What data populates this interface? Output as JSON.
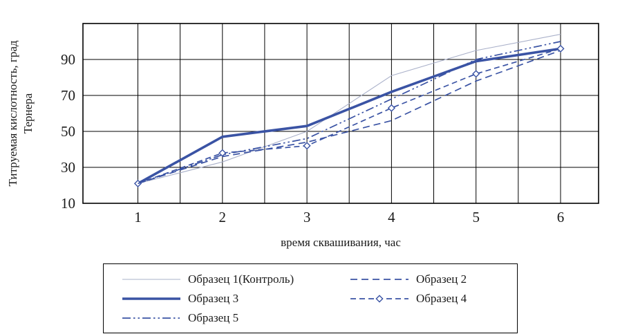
{
  "page": {
    "background": "#ffffff"
  },
  "chart_data": {
    "type": "line",
    "x": [
      1,
      2,
      3,
      4,
      5,
      6
    ],
    "x_ticks": [
      "1",
      "2",
      "3",
      "4",
      "5",
      "6"
    ],
    "y_ticks": [
      "10",
      "30",
      "50",
      "70",
      "90"
    ],
    "xlabel": "время сквашивания, час",
    "ylabel": "Титруемая кислотность, град Тернера",
    "ylabel_lines": [
      "Титруемая кислотность, град",
      "Тернера"
    ],
    "xlim": [
      0.35,
      6.45
    ],
    "ylim": [
      10,
      110
    ],
    "grid": true,
    "x_grid": {
      "start": 1,
      "end": 6,
      "step": 0.5
    },
    "y_grid": {
      "start": 10,
      "end": 110,
      "step": 20
    },
    "grid_color": "#000000",
    "accent_color": "#3a53a4",
    "legend_position": "bottom",
    "series": [
      {
        "name": "Образец 1(Контроль)",
        "style": "thin",
        "color": "#a9b0c9",
        "values": [
          21,
          33,
          50,
          81,
          95,
          104
        ]
      },
      {
        "name": "Образец 2",
        "style": "dashed",
        "color": "#3a53a4",
        "values": [
          21,
          36,
          44,
          56,
          78,
          95
        ]
      },
      {
        "name": "Образец 3",
        "style": "thick",
        "color": "#3a53a4",
        "values": [
          21,
          47,
          53,
          72,
          89,
          96
        ]
      },
      {
        "name": "Образец 4",
        "style": "dash-diamond",
        "color": "#3a53a4",
        "values": [
          21,
          38,
          42,
          63,
          82,
          96
        ]
      },
      {
        "name": "Образец 5",
        "style": "dashdot",
        "color": "#3a53a4",
        "values": [
          21,
          37,
          46,
          68,
          90,
          100
        ]
      }
    ]
  }
}
